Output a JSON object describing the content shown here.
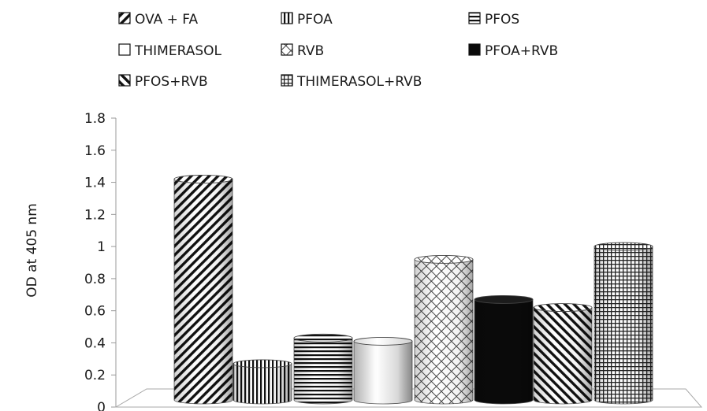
{
  "chart_data": {
    "type": "bar",
    "style": "3d-cylinder",
    "title": "",
    "xlabel": "",
    "ylabel": "OD at 405 nm",
    "ylim": [
      0,
      1.8
    ],
    "yticks": [
      "0",
      "0.2",
      "0.4",
      "0.6",
      "0.8",
      "1",
      "1.2",
      "1.4",
      "1.6",
      "1.8"
    ],
    "grid": false,
    "legend_position": "top",
    "categories": [
      "OVA + FA",
      "PFOA",
      "PFOS",
      "THIMERASOL",
      "RVB",
      "PFOA+RVB",
      "PFOS+RVB",
      "THIMERASOL+RVB"
    ],
    "series": [
      {
        "values": [
          1.42,
          0.27,
          0.43,
          0.41,
          0.92,
          0.67,
          0.62,
          1.0
        ]
      }
    ],
    "bar_patterns": [
      "diagonal-down",
      "vertical-lines",
      "horizontal-lines",
      "none-white",
      "diamond-check",
      "solid-black",
      "diagonal-up",
      "grid"
    ]
  }
}
